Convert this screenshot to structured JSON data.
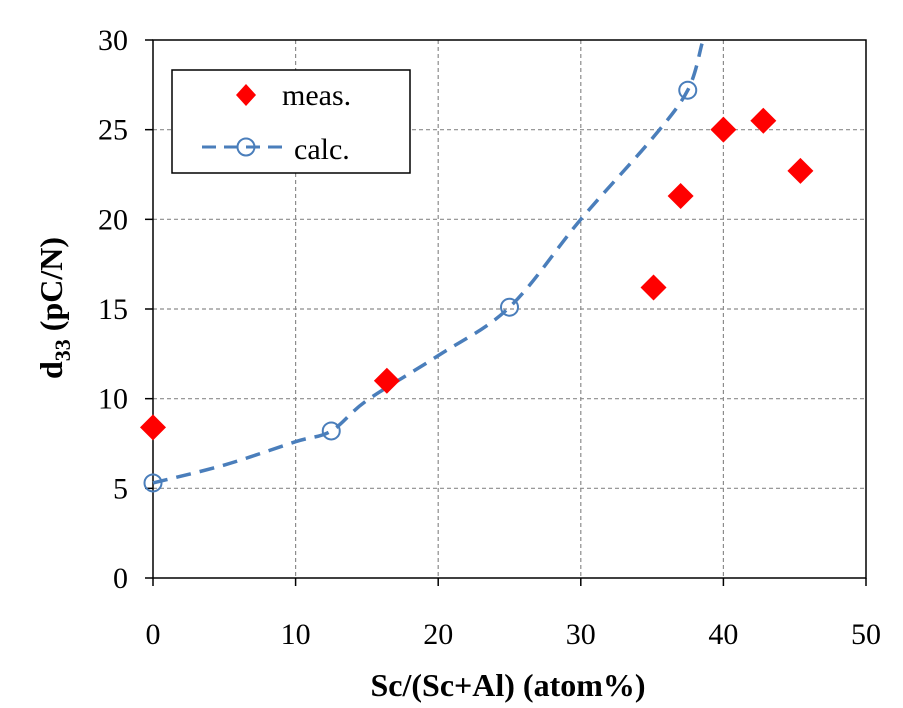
{
  "chart_data": {
    "type": "scatter",
    "xlabel": "Sc/(Sc+Al)  (atom%)",
    "ylabel_main": "d",
    "ylabel_sub": "33",
    "ylabel_rest": " (pC/N)",
    "xlim": [
      0,
      50
    ],
    "ylim": [
      0,
      30
    ],
    "x_ticks": [
      0,
      10,
      20,
      30,
      40,
      50
    ],
    "y_ticks": [
      0,
      5,
      10,
      15,
      20,
      25,
      30
    ],
    "grid": true,
    "legend_position": "top-left",
    "series": [
      {
        "name": "meas.",
        "style": "diamond-markers",
        "color": "#ff0000",
        "x": [
          0,
          16.4,
          35.1,
          37.0,
          40.0,
          42.8,
          45.4
        ],
        "y": [
          8.4,
          11.0,
          16.2,
          21.3,
          25.0,
          25.5,
          22.7
        ]
      },
      {
        "name": "calc.",
        "style": "dashed-line-open-circles",
        "color": "#4a7ebb",
        "x": [
          0,
          12.5,
          25.0,
          37.5
        ],
        "y": [
          5.3,
          8.2,
          15.1,
          27.2
        ],
        "curve_x": [
          0,
          5,
          10,
          12.5,
          15,
          20,
          25,
          30,
          35,
          37.5,
          38.5
        ],
        "curve_y": [
          5.3,
          6.3,
          7.6,
          8.2,
          9.9,
          12.4,
          15.1,
          20.0,
          24.5,
          27.2,
          29.8
        ]
      }
    ]
  }
}
